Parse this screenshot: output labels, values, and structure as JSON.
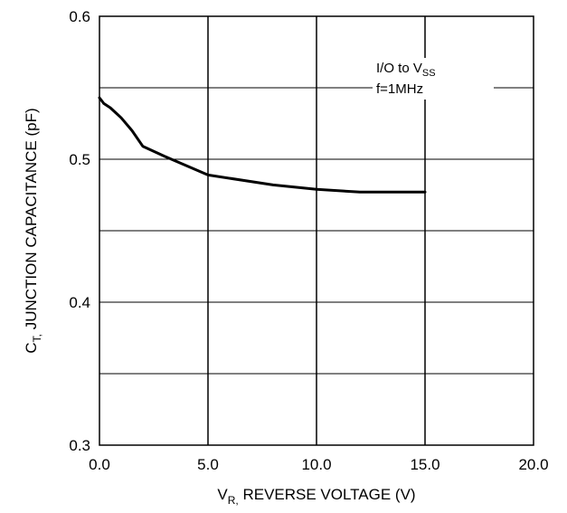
{
  "chart_data": {
    "type": "line",
    "xlabel": {
      "main": "V",
      "sub": "R,",
      "rest": " REVERSE VOLTAGE (V)"
    },
    "ylabel": {
      "main": "C",
      "sub": "T,",
      "rest": " JUNCTION CAPACITANCE (pF)"
    },
    "xlim": [
      0,
      20
    ],
    "ylim": [
      0.3,
      0.6
    ],
    "x_ticks": [
      0,
      5,
      10,
      15,
      20
    ],
    "x_tick_labels": [
      "0.0",
      "5.0",
      "10.0",
      "15.0",
      "20.0"
    ],
    "y_ticks": [
      0.3,
      0.4,
      0.5,
      0.6
    ],
    "y_tick_labels": [
      "0.3",
      "0.4",
      "0.5",
      "0.6"
    ],
    "y_minor_gridlines": [
      0.35,
      0.45,
      0.55
    ],
    "grid": true,
    "annotation": {
      "line1": "I/O to V",
      "line1_sub": "SS",
      "line2": "f=1MHz"
    },
    "series": [
      {
        "color": "#000000",
        "x": [
          0,
          0.2,
          0.5,
          1.0,
          1.5,
          2.0,
          3.0,
          5.0,
          8.0,
          10.0,
          12.0,
          15.0
        ],
        "y": [
          0.543,
          0.539,
          0.536,
          0.529,
          0.52,
          0.509,
          0.502,
          0.489,
          0.482,
          0.479,
          0.477,
          0.477
        ]
      }
    ]
  }
}
